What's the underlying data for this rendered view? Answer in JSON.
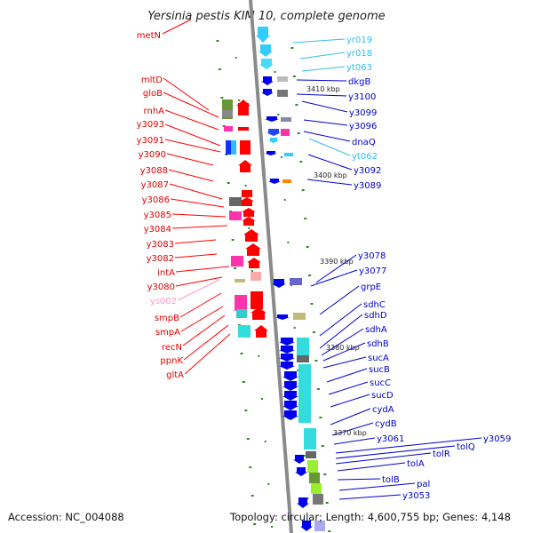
{
  "title": "Yersinia pestis KIM 10, complete genome",
  "footer": {
    "accession": "Accession: NC_004088",
    "summary": "Topology: circular; Length: 4,600,755 bp; Genes: 4,148"
  },
  "colors": {
    "left_label": "#e00000",
    "right_label": "#0000cc",
    "light_label": "#33bbee",
    "pink_label": "#ff99cc",
    "connector_red": "#ff0000",
    "connector_blue": "#0000cc",
    "tick": "#2e8b22",
    "backbone": "#8a8a8a"
  },
  "kbp_marks": [
    "3410 kbp",
    "3400 kbp",
    "3390 kbp",
    "3380 kbp",
    "3370 kbp"
  ],
  "left_labels": [
    "metN",
    "mltD",
    "gloB",
    "rnhA",
    "y3093",
    "y3091",
    "y3090",
    "y3088",
    "y3087",
    "y3086",
    "y3085",
    "y3084",
    "y3083",
    "y3082",
    "intA",
    "y3080",
    "ys002",
    "smpB",
    "smpA",
    "recN",
    "ppnK",
    "gltA"
  ],
  "right_labels": [
    "yr019",
    "yr018",
    "yt063",
    "dkgB",
    "y3100",
    "y3099",
    "y3096",
    "dnaQ",
    "yt062",
    "y3092",
    "y3089",
    "y3078",
    "y3077",
    "grpE",
    "sdhC",
    "sdhD",
    "sdhA",
    "sdhB",
    "sucA",
    "sucB",
    "sucC",
    "sucD",
    "cydA",
    "cydB",
    "y3061",
    "y3059",
    "tolQ",
    "tolR",
    "tolA",
    "tolB",
    "pal",
    "y3053"
  ]
}
